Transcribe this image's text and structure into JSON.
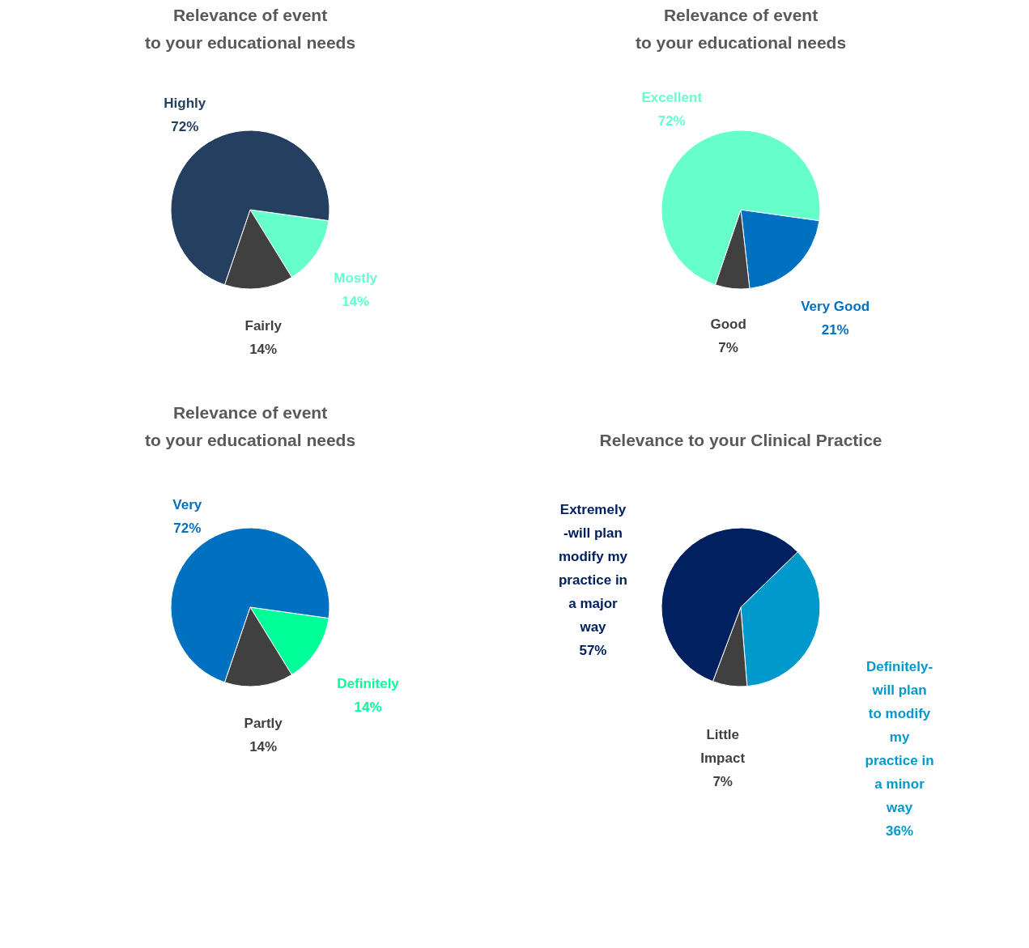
{
  "chart_data": [
    {
      "type": "pie",
      "title": "Relevance of event\nto your educational needs",
      "categories": [
        "Mostly",
        "Fairly",
        "Highly"
      ],
      "values": [
        14,
        14,
        72
      ],
      "value_labels": [
        "14%",
        "14%",
        "72%"
      ],
      "colors": [
        "#66ffcc",
        "#404040",
        "#243f60"
      ],
      "legend": false
    },
    {
      "type": "pie",
      "title": "Relevance of event\nto your educational needs",
      "categories": [
        "Very Good",
        "Good",
        "Excellent"
      ],
      "values": [
        21,
        7,
        72
      ],
      "value_labels": [
        "21%",
        "7%",
        "72%"
      ],
      "colors": [
        "#0070c0",
        "#404040",
        "#66ffcc"
      ],
      "legend": false
    },
    {
      "type": "pie",
      "title": "Relevance of event\nto your educational needs",
      "categories": [
        "Definitely",
        "Partly",
        "Very"
      ],
      "values": [
        14,
        14,
        72
      ],
      "value_labels": [
        "14%",
        "14%",
        "72%"
      ],
      "colors": [
        "#00ff99",
        "#404040",
        "#0070c0"
      ],
      "legend": false
    },
    {
      "type": "pie",
      "title": "Relevance to your Clinical Practice",
      "categories": [
        "Definitely-\nwill plan\nto modify\nmy\npractice in\na minor\nway",
        "Little\nImpact",
        "Extremely\n-will plan\nmodify my\npractice in\na major\nway"
      ],
      "values": [
        36,
        7,
        57
      ],
      "value_labels": [
        "36%",
        "7%",
        "57%"
      ],
      "colors": [
        "#0099cc",
        "#404040",
        "#002060"
      ],
      "legend": false
    }
  ]
}
